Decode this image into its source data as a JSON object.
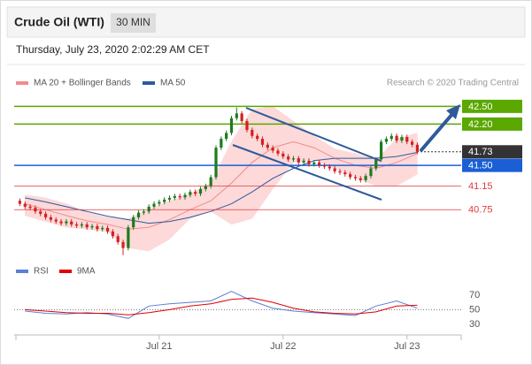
{
  "header": {
    "title": "Crude Oil (WTI)",
    "timeframe": "30 MIN",
    "date": "Thursday, July 23, 2020 2:02:29 AM CET"
  },
  "chart_data": [
    {
      "type": "candlestick",
      "source": "Research © 2020 Trading Central",
      "xlim": [
        -28.1,
        58.5
      ],
      "ylim": [
        39.9,
        42.7
      ],
      "xticks": [
        {
          "value": 0,
          "label": "Jul 21"
        },
        {
          "value": 24,
          "label": "Jul 22"
        },
        {
          "value": 48,
          "label": "Jul 23"
        }
      ],
      "up_color": "#1f7a1f",
      "down_color": "#d32020",
      "candles": {
        "x": [
          -27,
          -26,
          -25,
          -24,
          -23,
          -22,
          -21,
          -20,
          -19,
          -18,
          -17,
          -16,
          -15,
          -14,
          -13,
          -12,
          -11,
          -10,
          -9,
          -8,
          -7,
          -6,
          -5,
          -4,
          -3,
          -2,
          -1,
          0,
          1,
          2,
          3,
          4,
          5,
          6,
          7,
          8,
          9,
          10,
          11,
          12,
          13,
          14,
          15,
          16,
          17,
          18,
          19,
          20,
          21,
          22,
          23,
          24,
          25,
          26,
          27,
          28,
          29,
          30,
          31,
          32,
          33,
          34,
          35,
          36,
          37,
          38,
          39,
          40,
          41,
          42,
          43,
          44,
          45,
          46,
          47,
          48,
          49,
          50
        ],
        "open": [
          40.9,
          40.85,
          40.8,
          40.78,
          40.72,
          40.68,
          40.62,
          40.58,
          40.55,
          40.52,
          40.55,
          40.5,
          40.48,
          40.5,
          40.45,
          40.47,
          40.42,
          40.44,
          40.38,
          40.3,
          40.2,
          40.1,
          40.45,
          40.62,
          40.7,
          40.72,
          40.8,
          40.85,
          40.88,
          40.92,
          40.95,
          40.98,
          40.96,
          41.0,
          41.05,
          41.02,
          41.1,
          41.15,
          41.3,
          41.8,
          41.95,
          42.05,
          42.3,
          42.38,
          42.25,
          42.1,
          42.0,
          41.95,
          41.85,
          41.8,
          41.75,
          41.7,
          41.65,
          41.6,
          41.62,
          41.55,
          41.58,
          41.52,
          41.55,
          41.5,
          41.48,
          41.45,
          41.4,
          41.38,
          41.35,
          41.3,
          41.28,
          41.25,
          41.32,
          41.45,
          41.6,
          41.9,
          41.95,
          42.0,
          41.92,
          41.98,
          41.9,
          41.85
        ],
        "high": [
          40.94,
          40.89,
          40.84,
          40.82,
          40.76,
          40.72,
          40.66,
          40.62,
          40.59,
          40.59,
          40.59,
          40.54,
          40.54,
          40.54,
          40.51,
          40.51,
          40.48,
          40.48,
          40.42,
          40.34,
          40.24,
          40.49,
          40.66,
          40.74,
          40.76,
          40.84,
          40.89,
          40.92,
          40.96,
          40.99,
          41.02,
          41.02,
          41.04,
          41.09,
          41.09,
          41.14,
          41.19,
          41.34,
          41.84,
          41.99,
          42.09,
          42.34,
          42.48,
          42.42,
          42.29,
          42.14,
          42.04,
          41.99,
          41.89,
          41.84,
          41.79,
          41.74,
          41.69,
          41.66,
          41.66,
          41.62,
          41.62,
          41.59,
          41.59,
          41.54,
          41.52,
          41.49,
          41.44,
          41.42,
          41.39,
          41.34,
          41.32,
          41.36,
          41.49,
          41.64,
          41.94,
          41.99,
          42.04,
          42.04,
          42.02,
          42.02,
          41.94,
          41.89
        ],
        "low": [
          40.81,
          40.76,
          40.74,
          40.68,
          40.64,
          40.58,
          40.54,
          40.51,
          40.48,
          40.48,
          40.46,
          40.44,
          40.44,
          40.41,
          40.41,
          40.38,
          40.38,
          40.34,
          40.26,
          40.16,
          39.98,
          40.06,
          40.41,
          40.58,
          40.66,
          40.68,
          40.76,
          40.81,
          40.84,
          40.88,
          40.91,
          40.92,
          40.92,
          40.96,
          40.98,
          40.98,
          41.06,
          41.11,
          41.26,
          41.76,
          41.91,
          42.01,
          42.26,
          42.21,
          42.06,
          41.96,
          41.91,
          41.81,
          41.76,
          41.71,
          41.66,
          41.61,
          41.56,
          41.56,
          41.51,
          41.51,
          41.48,
          41.48,
          41.46,
          41.44,
          41.41,
          41.36,
          41.34,
          41.31,
          41.26,
          41.24,
          41.21,
          41.21,
          41.28,
          41.41,
          41.56,
          41.86,
          41.91,
          41.88,
          41.88,
          41.86,
          41.81,
          41.69
        ],
        "close": [
          40.85,
          40.8,
          40.78,
          40.72,
          40.68,
          40.62,
          40.58,
          40.55,
          40.52,
          40.55,
          40.5,
          40.48,
          40.5,
          40.45,
          40.47,
          40.42,
          40.44,
          40.38,
          40.3,
          40.2,
          40.1,
          40.45,
          40.62,
          40.7,
          40.72,
          40.8,
          40.85,
          40.88,
          40.92,
          40.95,
          40.98,
          40.96,
          41.0,
          41.05,
          41.02,
          41.1,
          41.15,
          41.3,
          41.8,
          41.95,
          42.05,
          42.3,
          42.38,
          42.25,
          42.1,
          42.0,
          41.95,
          41.85,
          41.8,
          41.75,
          41.7,
          41.65,
          41.6,
          41.62,
          41.55,
          41.58,
          41.52,
          41.55,
          41.5,
          41.48,
          41.45,
          41.4,
          41.38,
          41.35,
          41.3,
          41.28,
          41.25,
          41.32,
          41.45,
          41.6,
          41.9,
          41.95,
          42.0,
          41.92,
          41.98,
          41.9,
          41.85,
          41.73
        ]
      },
      "series": [
        {
          "name": "MA 20 + Bollinger Bands",
          "color": "#f28b8b",
          "band_color": "#fdd9d9",
          "x": [
            -26,
            -22,
            -18,
            -14,
            -10,
            -6,
            -2,
            2,
            6,
            10,
            14,
            18,
            22,
            26,
            30,
            34,
            38,
            42,
            46,
            50
          ],
          "values": [
            40.85,
            40.75,
            40.65,
            40.56,
            40.5,
            40.42,
            40.45,
            40.58,
            40.75,
            40.9,
            41.2,
            41.55,
            41.8,
            41.9,
            41.8,
            41.62,
            41.5,
            41.45,
            41.55,
            41.7
          ],
          "upper": [
            41.0,
            40.95,
            40.85,
            40.7,
            40.62,
            40.6,
            40.75,
            40.9,
            41.02,
            41.2,
            41.9,
            42.45,
            42.5,
            42.25,
            42.0,
            41.78,
            41.7,
            41.6,
            41.95,
            42.05
          ],
          "lower": [
            40.65,
            40.55,
            40.45,
            40.42,
            40.38,
            40.1,
            40.05,
            40.25,
            40.6,
            40.72,
            40.5,
            40.6,
            41.1,
            41.55,
            41.6,
            41.45,
            41.3,
            41.15,
            41.15,
            41.35
          ]
        },
        {
          "name": "MA 50",
          "color": "#2c5aa0",
          "x": [
            -26,
            -22,
            -18,
            -14,
            -10,
            -6,
            -2,
            2,
            6,
            10,
            14,
            18,
            22,
            26,
            30,
            34,
            38,
            42,
            46,
            50
          ],
          "values": [
            40.95,
            40.88,
            40.8,
            40.72,
            40.64,
            40.58,
            40.52,
            40.55,
            40.62,
            40.72,
            40.85,
            41.05,
            41.28,
            41.45,
            41.58,
            41.62,
            41.62,
            41.62,
            41.65,
            41.72
          ]
        }
      ],
      "levels": [
        {
          "value": 42.5,
          "label": "42.50",
          "color": "#5aa800",
          "box": true
        },
        {
          "value": 42.2,
          "label": "42.20",
          "color": "#5aa800",
          "box": true
        },
        {
          "value": 41.73,
          "label": "41.73",
          "color": "#333333",
          "box": true,
          "dotted": true
        },
        {
          "value": 41.5,
          "label": "41.50",
          "color": "#1a5fd6",
          "box": true
        },
        {
          "value": 41.15,
          "label": "41.15",
          "color": "#e23a3a",
          "box": false
        },
        {
          "value": 40.75,
          "label": "40.75",
          "color": "#e23a3a",
          "box": false
        }
      ]
    },
    {
      "type": "line",
      "xlim": [
        -28.1,
        58.5
      ],
      "ylim": [
        19,
        88
      ],
      "yticks": [
        70,
        50,
        30
      ],
      "dotted_line": 50,
      "series": [
        {
          "name": "RSI",
          "color": "#5b7fd6",
          "x": [
            -26,
            -22,
            -18,
            -14,
            -10,
            -6,
            -2,
            2,
            6,
            10,
            14,
            18,
            22,
            26,
            30,
            34,
            38,
            42,
            46,
            50
          ],
          "values": [
            48,
            45,
            44,
            46,
            44,
            38,
            55,
            58,
            60,
            62,
            75,
            62,
            52,
            48,
            46,
            44,
            42,
            55,
            62,
            52
          ]
        },
        {
          "name": "9MA",
          "color": "#e00000",
          "x": [
            -26,
            -22,
            -18,
            -14,
            -10,
            -6,
            -2,
            2,
            6,
            10,
            14,
            18,
            22,
            26,
            30,
            34,
            38,
            42,
            46,
            50
          ],
          "values": [
            50,
            48,
            46,
            45,
            45,
            43,
            46,
            50,
            55,
            58,
            64,
            66,
            60,
            52,
            47,
            45,
            44,
            47,
            55,
            56
          ]
        }
      ]
    }
  ]
}
